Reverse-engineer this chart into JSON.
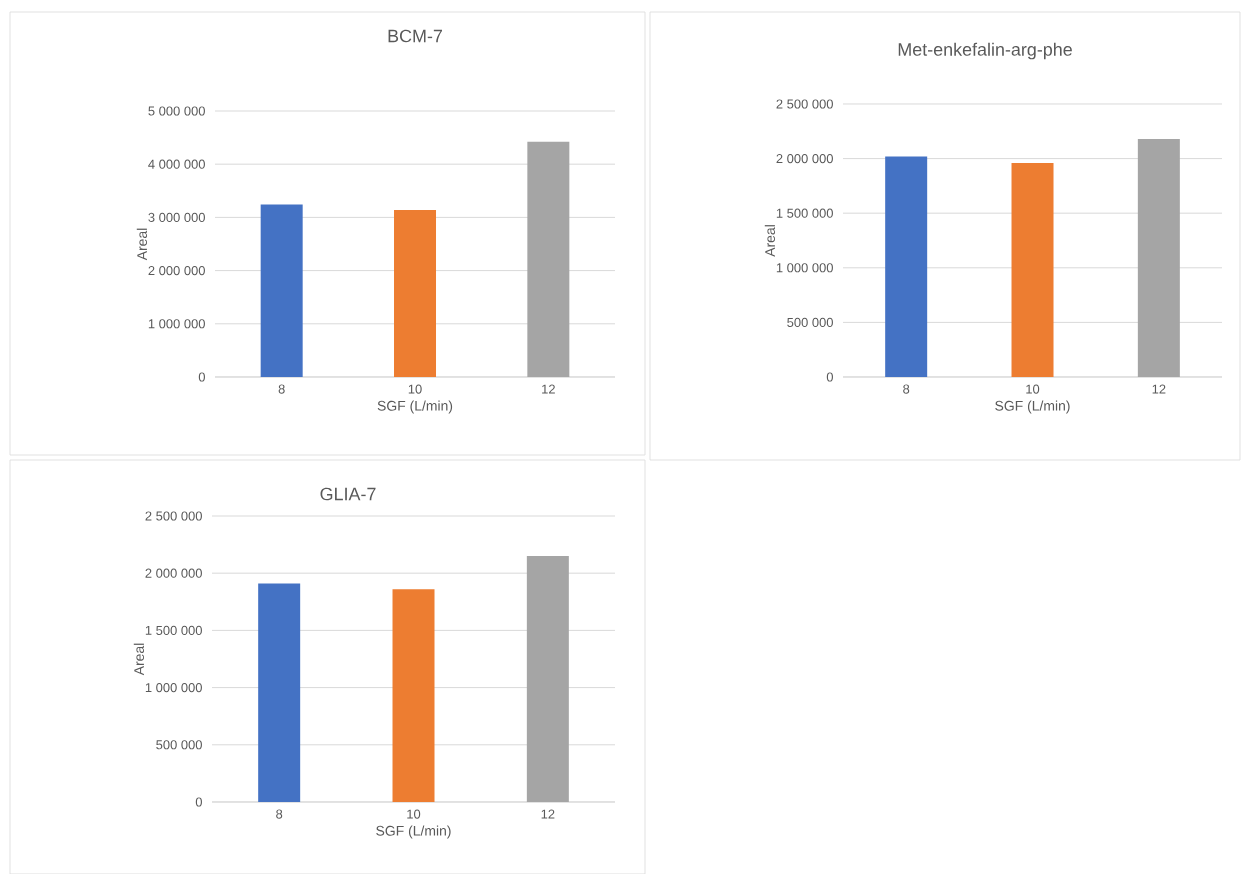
{
  "chart_data": [
    {
      "type": "bar",
      "title": "BCM-7",
      "xlabel": "SGF (L/min)",
      "ylabel": "Areal",
      "categories": [
        "8",
        "10",
        "12"
      ],
      "values": [
        3240000,
        3140000,
        4420000
      ],
      "colors": [
        "#4472c4",
        "#ed7d31",
        "#a5a5a5"
      ],
      "ylim": [
        0,
        5000000
      ],
      "yticks": [
        {
          "value": 0,
          "label": "0"
        },
        {
          "value": 1000000,
          "label": "1 000 000"
        },
        {
          "value": 2000000,
          "label": "2 000 000"
        },
        {
          "value": 3000000,
          "label": "3 000 000"
        },
        {
          "value": 4000000,
          "label": "4 000 000"
        },
        {
          "value": 5000000,
          "label": "5 000 000"
        }
      ],
      "grid": "y"
    },
    {
      "type": "bar",
      "title": "Met-enkefalin-arg-phe",
      "xlabel": "SGF (L/min)",
      "ylabel": "Areal",
      "categories": [
        "8",
        "10",
        "12"
      ],
      "values": [
        2020000,
        1960000,
        2180000
      ],
      "colors": [
        "#4472c4",
        "#ed7d31",
        "#a5a5a5"
      ],
      "ylim": [
        0,
        2500000
      ],
      "yticks": [
        {
          "value": 0,
          "label": "0"
        },
        {
          "value": 500000,
          "label": "500 000"
        },
        {
          "value": 1000000,
          "label": "1 000 000"
        },
        {
          "value": 1500000,
          "label": "1 500 000"
        },
        {
          "value": 2000000,
          "label": "2 000 000"
        },
        {
          "value": 2500000,
          "label": "2 500 000"
        }
      ],
      "grid": "y"
    },
    {
      "type": "bar",
      "title": "GLIA-7",
      "xlabel": "SGF (L/min)",
      "ylabel": "Areal",
      "categories": [
        "8",
        "10",
        "12"
      ],
      "values": [
        1910000,
        1860000,
        2150000
      ],
      "colors": [
        "#4472c4",
        "#ed7d31",
        "#a5a5a5"
      ],
      "ylim": [
        0,
        2500000
      ],
      "yticks": [
        {
          "value": 0,
          "label": "0"
        },
        {
          "value": 500000,
          "label": "500 000"
        },
        {
          "value": 1000000,
          "label": "1 000 000"
        },
        {
          "value": 1500000,
          "label": "1 500 000"
        },
        {
          "value": 2000000,
          "label": "2 000 000"
        },
        {
          "value": 2500000,
          "label": "2 500 000"
        }
      ],
      "grid": "y"
    }
  ]
}
